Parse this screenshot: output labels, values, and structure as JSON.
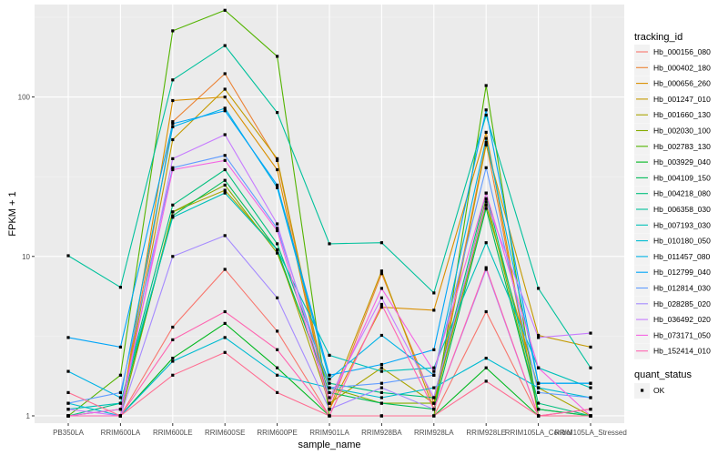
{
  "chart_data": {
    "type": "line",
    "title": "",
    "xlabel": "sample_name",
    "ylabel": "FPKM + 1",
    "y_scale": "log10",
    "ylim": [
      0.9,
      380
    ],
    "y_ticks": [
      1,
      10,
      100
    ],
    "grid": true,
    "categories": [
      "PB350LA",
      "RRIM600LA",
      "RRIM600LE",
      "RRIM600SE",
      "RRIM600PE",
      "RRIM901LA",
      "RRIM928BA",
      "RRIM928LA",
      "RRIM928LE",
      "RRIM105LA_Control",
      "RRIM105LA_Stressed"
    ],
    "legend": {
      "title": "tracking_id",
      "position": "right",
      "shape_title": "quant_status",
      "shape_entries": [
        "OK"
      ]
    },
    "series": [
      {
        "name": "Hb_000156_080",
        "color": "#F8766D",
        "values": [
          1.0,
          1.0,
          3.6,
          8.3,
          3.4,
          1.0,
          1.0,
          1.0,
          4.5,
          1.0,
          1.0
        ]
      },
      {
        "name": "Hb_000402_180",
        "color": "#EB8335",
        "values": [
          1.0,
          1.0,
          70,
          140,
          40,
          1.1,
          7.8,
          1.2,
          52,
          1.0,
          1.1
        ]
      },
      {
        "name": "Hb_000656_260",
        "color": "#DA8F00",
        "values": [
          1.0,
          1.0,
          95,
          100,
          35,
          1.1,
          4.8,
          4.6,
          60,
          1.0,
          1.0
        ]
      },
      {
        "name": "Hb_001247_010",
        "color": "#C49A00",
        "values": [
          1.0,
          1.0,
          54,
          112,
          41,
          1.2,
          8.1,
          1.1,
          50,
          3.2,
          2.7
        ]
      },
      {
        "name": "Hb_001660_130",
        "color": "#A9A400",
        "values": [
          1.0,
          1.0,
          19,
          26,
          11,
          1.2,
          2.0,
          1.2,
          21,
          1.5,
          1.0
        ]
      },
      {
        "name": "Hb_002030_100",
        "color": "#86AC00",
        "values": [
          1.0,
          1.0,
          19,
          28,
          10.5,
          1.5,
          1.2,
          1.2,
          23,
          1.1,
          1.0
        ]
      },
      {
        "name": "Hb_002783_130",
        "color": "#53B400",
        "values": [
          1.0,
          1.8,
          260,
          350,
          180,
          1.0,
          1.0,
          1.0,
          118,
          1.0,
          1.0
        ]
      },
      {
        "name": "Hb_003929_040",
        "color": "#00B81F",
        "values": [
          1.0,
          1.0,
          2.3,
          3.8,
          2.0,
          1.0,
          1.0,
          1.0,
          2.0,
          1.0,
          1.0
        ]
      },
      {
        "name": "Hb_004109_150",
        "color": "#00BC59",
        "values": [
          1.0,
          1.1,
          18,
          30,
          11,
          1.4,
          1.2,
          1.1,
          20,
          1.1,
          1.0
        ]
      },
      {
        "name": "Hb_004218_080",
        "color": "#00BF7D",
        "values": [
          1.0,
          1.2,
          21,
          35,
          12,
          1.6,
          1.4,
          1.3,
          25,
          1.2,
          1.0
        ]
      },
      {
        "name": "Hb_006358_030",
        "color": "#00C19C",
        "values": [
          10.1,
          6.4,
          128,
          210,
          80,
          12,
          12.2,
          5.9,
          77,
          6.3,
          2.0
        ]
      },
      {
        "name": "Hb_007193_030",
        "color": "#00C0B8",
        "values": [
          1.1,
          1.2,
          17.6,
          25,
          11,
          2.4,
          1.9,
          2.0,
          12.2,
          2.0,
          1.5
        ]
      },
      {
        "name": "Hb_010180_050",
        "color": "#00BBD1",
        "values": [
          1.2,
          1.0,
          2.2,
          3.1,
          1.8,
          1.5,
          1.3,
          1.5,
          2.3,
          1.5,
          1.3
        ]
      },
      {
        "name": "Hb_011457_080",
        "color": "#00B3E6",
        "values": [
          1.9,
          1.3,
          65,
          85,
          27,
          1.7,
          3.2,
          1.8,
          55,
          1.6,
          1.6
        ]
      },
      {
        "name": "Hb_012799_040",
        "color": "#00A5F8",
        "values": [
          3.1,
          2.7,
          68,
          82,
          28,
          1.8,
          2.1,
          2.6,
          83,
          1.6,
          1.6
        ]
      },
      {
        "name": "Hb_012814_030",
        "color": "#619CFF",
        "values": [
          1.2,
          1.4,
          36,
          43,
          15,
          1.5,
          1.6,
          1.8,
          36,
          1.4,
          1.3
        ]
      },
      {
        "name": "Hb_028285_020",
        "color": "#A58AFF",
        "values": [
          1.0,
          1.0,
          10,
          13.5,
          5.5,
          1.1,
          1.5,
          1.1,
          8.3,
          1.0,
          1.0
        ]
      },
      {
        "name": "Hb_036492_020",
        "color": "#C77CFF",
        "values": [
          1.1,
          1.0,
          41,
          58,
          16,
          1.3,
          5.5,
          1.3,
          22,
          3.1,
          3.3
        ]
      },
      {
        "name": "Hb_073171_050",
        "color": "#F564E3",
        "values": [
          1.0,
          1.1,
          35,
          40,
          14.5,
          1.2,
          6.3,
          1.9,
          25,
          2.0,
          1.0
        ]
      },
      {
        "name": "Hb_152414_010",
        "color": "#FF64B0",
        "values": [
          1.0,
          1.0,
          3.0,
          4.5,
          2.6,
          1.0,
          5.0,
          1.1,
          8.5,
          1.0,
          1.1
        ]
      },
      {
        "name": "",
        "color": "#FF6C91",
        "values": [
          1.4,
          1.0,
          1.8,
          2.5,
          1.4,
          1.0,
          1.0,
          1.0,
          1.65,
          1.0,
          1.0
        ]
      }
    ]
  }
}
